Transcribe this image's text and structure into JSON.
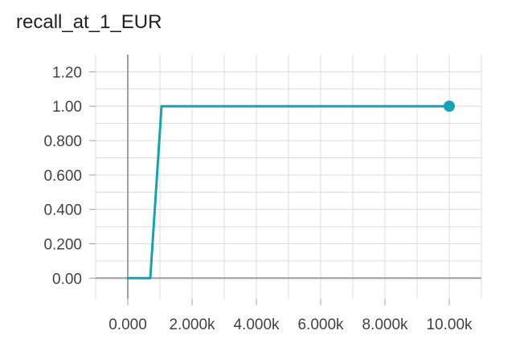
{
  "chart_data": {
    "type": "line",
    "title": "recall_at_1_EUR",
    "xlabel": "",
    "ylabel": "",
    "xlim": [
      -1000,
      11000
    ],
    "ylim": [
      -0.12,
      1.3
    ],
    "grid": true,
    "x_ticks": [
      0,
      2000,
      4000,
      6000,
      8000,
      10000
    ],
    "x_tick_labels": [
      "0.000",
      "2.000k",
      "4.000k",
      "6.000k",
      "8.000k",
      "10.00k"
    ],
    "y_ticks": [
      0,
      0.2,
      0.4,
      0.6,
      0.8,
      1.0,
      1.2
    ],
    "y_tick_labels": [
      "0.00",
      "0.200",
      "0.400",
      "0.600",
      "0.800",
      "1.00",
      "1.20"
    ],
    "series": [
      {
        "color": "#12a4b4",
        "x": [
          0,
          700,
          1050,
          10000
        ],
        "y": [
          0,
          0,
          1.0,
          1.0
        ]
      }
    ]
  }
}
